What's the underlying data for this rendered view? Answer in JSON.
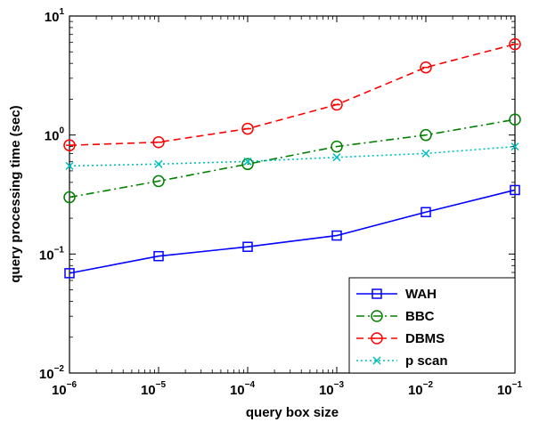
{
  "chart_data": {
    "type": "line",
    "title": "",
    "xlabel": "query box size",
    "ylabel": "query processing time (sec)",
    "xscale": "log",
    "yscale": "log",
    "xlim": [
      1e-06,
      0.1
    ],
    "ylim": [
      0.01,
      10
    ],
    "x": [
      1e-06,
      1e-05,
      0.0001,
      0.001,
      0.01,
      0.1
    ],
    "x_tick_labels": [
      {
        "base": "10",
        "exp": "−6"
      },
      {
        "base": "10",
        "exp": "−5"
      },
      {
        "base": "10",
        "exp": "−4"
      },
      {
        "base": "10",
        "exp": "−3"
      },
      {
        "base": "10",
        "exp": "−2"
      },
      {
        "base": "10",
        "exp": "−1"
      }
    ],
    "y_tick_labels": [
      {
        "base": "10",
        "exp": "−2"
      },
      {
        "base": "10",
        "exp": "−1"
      },
      {
        "base": "10",
        "exp": "0"
      },
      {
        "base": "10",
        "exp": "1"
      }
    ],
    "legend_position": "bottom-right",
    "grid": false,
    "series": [
      {
        "name": "WAH",
        "color": "#0000ff",
        "marker": "square",
        "dash": "solid",
        "values": [
          0.069,
          0.096,
          0.115,
          0.143,
          0.225,
          0.345
        ]
      },
      {
        "name": "BBC",
        "color": "#008000",
        "marker": "circle",
        "dash": "dashdot",
        "values": [
          0.3,
          0.41,
          0.57,
          0.8,
          1.0,
          1.35
        ]
      },
      {
        "name": "DBMS",
        "color": "#ff0000",
        "marker": "circle-dash",
        "dash": "dashed",
        "values": [
          0.82,
          0.87,
          1.13,
          1.8,
          3.7,
          5.8
        ]
      },
      {
        "name": "p scan",
        "color": "#00bfbf",
        "marker": "x",
        "dash": "dotted",
        "values": [
          0.55,
          0.57,
          0.6,
          0.65,
          0.7,
          0.8
        ]
      }
    ]
  }
}
